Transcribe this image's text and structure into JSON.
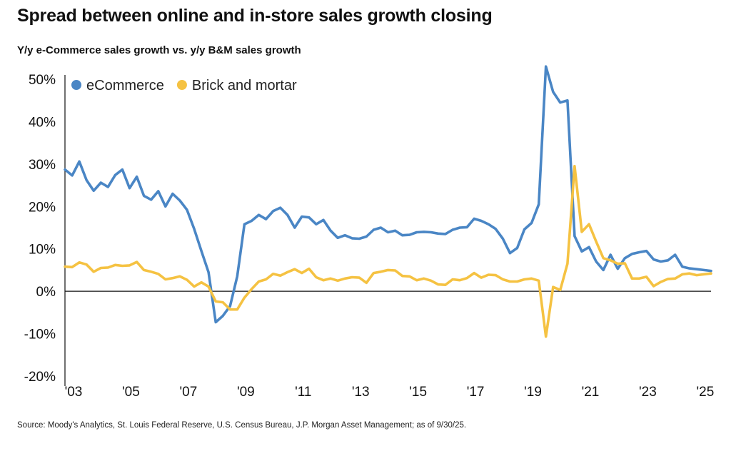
{
  "title": "Spread between online and in-store sales growth closing",
  "subtitle": "Y/y e-Commerce sales growth vs. y/y B&M sales growth",
  "source": "Source: Moody's Analytics, St. Louis Federal Reserve, U.S. Census Bureau, J.P. Morgan Asset Management; as of 9/30/25.",
  "chart_data": {
    "type": "line",
    "title": "Spread between online and in-store sales growth closing",
    "subtitle": "Y/y e-Commerce sales growth vs. y/y B&M sales growth",
    "xlabel": "",
    "ylabel": "",
    "xlim": [
      2003.0,
      2025.5
    ],
    "ylim": [
      -20,
      50
    ],
    "y_ticks": [
      -20,
      -10,
      0,
      10,
      20,
      30,
      40,
      50
    ],
    "y_tick_labels": [
      "-20%",
      "-10%",
      "0%",
      "10%",
      "20%",
      "30%",
      "40%",
      "50%"
    ],
    "x_ticks": [
      2003,
      2005,
      2007,
      2009,
      2011,
      2013,
      2015,
      2017,
      2019,
      2021,
      2023,
      2025
    ],
    "x_tick_labels": [
      "'03",
      "'05",
      "'07",
      "'09",
      "'11",
      "'13",
      "'15",
      "'17",
      "'19",
      "'21",
      "'23",
      "'25"
    ],
    "legend_position": "top-left",
    "grid": false,
    "colors": {
      "ecommerce": "#4a86c5",
      "bm": "#f5c242",
      "axis": "#111111"
    },
    "series": [
      {
        "name": "eCommerce",
        "key": "ecommerce",
        "x": [
          2003.0,
          2003.25,
          2003.5,
          2003.75,
          2004.0,
          2004.25,
          2004.5,
          2004.75,
          2005.0,
          2005.25,
          2005.5,
          2005.75,
          2006.0,
          2006.25,
          2006.5,
          2006.75,
          2007.0,
          2007.25,
          2007.5,
          2007.75,
          2008.0,
          2008.25,
          2008.5,
          2008.75,
          2009.0,
          2009.25,
          2009.5,
          2009.75,
          2010.0,
          2010.25,
          2010.5,
          2010.75,
          2011.0,
          2011.25,
          2011.5,
          2011.75,
          2012.0,
          2012.25,
          2012.5,
          2012.75,
          2013.0,
          2013.25,
          2013.5,
          2013.75,
          2014.0,
          2014.25,
          2014.5,
          2014.75,
          2015.0,
          2015.25,
          2015.5,
          2015.75,
          2016.0,
          2016.25,
          2016.5,
          2016.75,
          2017.0,
          2017.25,
          2017.5,
          2017.75,
          2018.0,
          2018.25,
          2018.5,
          2018.75,
          2019.0,
          2019.25,
          2019.5,
          2019.75,
          2020.0,
          2020.25,
          2020.5,
          2020.75,
          2021.0,
          2021.25,
          2021.5,
          2021.75,
          2022.0,
          2022.25,
          2022.5,
          2022.75,
          2023.0,
          2023.25,
          2023.5,
          2023.75,
          2024.0,
          2024.25,
          2024.5,
          2024.75,
          2025.0,
          2025.25,
          2025.5
        ],
        "values": [
          28.7,
          27.3,
          30.6,
          26.2,
          23.7,
          25.6,
          24.6,
          27.4,
          28.7,
          24.3,
          27.0,
          22.5,
          21.6,
          23.6,
          20.0,
          23.0,
          21.4,
          19.2,
          14.7,
          9.5,
          4.5,
          -7.3,
          -5.8,
          -3.5,
          3.5,
          15.8,
          16.6,
          18.0,
          17.0,
          18.9,
          19.7,
          18.0,
          15.0,
          17.6,
          17.4,
          15.8,
          16.8,
          14.3,
          12.6,
          13.2,
          12.5,
          12.4,
          12.9,
          14.5,
          15.0,
          13.9,
          14.3,
          13.2,
          13.3,
          13.9,
          14.0,
          13.9,
          13.6,
          13.5,
          14.5,
          15.0,
          15.1,
          17.1,
          16.6,
          15.8,
          14.7,
          12.4,
          9.0,
          10.2,
          14.6,
          16.1,
          20.5,
          53.0,
          47.0,
          44.5,
          45.0,
          13.0,
          9.4,
          10.4,
          7.0,
          5.0,
          8.6,
          5.3,
          7.8,
          8.8,
          9.2,
          9.5,
          7.5,
          7.0,
          7.3,
          8.6,
          5.8,
          5.4,
          5.2,
          5.0,
          4.8
        ]
      },
      {
        "name": "Brick and mortar",
        "key": "bm",
        "x": [
          2003.0,
          2003.25,
          2003.5,
          2003.75,
          2004.0,
          2004.25,
          2004.5,
          2004.75,
          2005.0,
          2005.25,
          2005.5,
          2005.75,
          2006.0,
          2006.25,
          2006.5,
          2006.75,
          2007.0,
          2007.25,
          2007.5,
          2007.75,
          2008.0,
          2008.25,
          2008.5,
          2008.75,
          2009.0,
          2009.25,
          2009.5,
          2009.75,
          2010.0,
          2010.25,
          2010.5,
          2010.75,
          2011.0,
          2011.25,
          2011.5,
          2011.75,
          2012.0,
          2012.25,
          2012.5,
          2012.75,
          2013.0,
          2013.25,
          2013.5,
          2013.75,
          2014.0,
          2014.25,
          2014.5,
          2014.75,
          2015.0,
          2015.25,
          2015.5,
          2015.75,
          2016.0,
          2016.25,
          2016.5,
          2016.75,
          2017.0,
          2017.25,
          2017.5,
          2017.75,
          2018.0,
          2018.25,
          2018.5,
          2018.75,
          2019.0,
          2019.25,
          2019.5,
          2019.75,
          2020.0,
          2020.25,
          2020.5,
          2020.75,
          2021.0,
          2021.25,
          2021.5,
          2021.75,
          2022.0,
          2022.25,
          2022.5,
          2022.75,
          2023.0,
          2023.25,
          2023.5,
          2023.75,
          2024.0,
          2024.25,
          2024.5,
          2024.75,
          2025.0,
          2025.25,
          2025.5
        ],
        "values": [
          5.8,
          5.7,
          6.8,
          6.3,
          4.6,
          5.5,
          5.6,
          6.2,
          6.0,
          6.1,
          6.9,
          5.0,
          4.6,
          4.1,
          2.8,
          3.1,
          3.5,
          2.7,
          1.1,
          2.1,
          1.1,
          -2.4,
          -2.6,
          -4.3,
          -4.3,
          -1.5,
          0.5,
          2.3,
          2.8,
          4.1,
          3.7,
          4.5,
          5.2,
          4.3,
          5.3,
          3.3,
          2.6,
          3.0,
          2.5,
          3.0,
          3.3,
          3.2,
          2.0,
          4.3,
          4.6,
          5.0,
          4.9,
          3.6,
          3.5,
          2.6,
          3.0,
          2.5,
          1.6,
          1.5,
          2.8,
          2.6,
          3.1,
          4.3,
          3.2,
          3.9,
          3.8,
          2.8,
          2.3,
          2.3,
          2.8,
          3.0,
          2.5,
          -10.7,
          1.0,
          0.3,
          6.5,
          29.5,
          14.0,
          15.8,
          11.7,
          7.8,
          7.3,
          6.5,
          6.6,
          3.0,
          3.0,
          3.4,
          1.2,
          2.2,
          2.9,
          3.0,
          4.0,
          4.2,
          3.8,
          4.0,
          4.2
        ]
      }
    ]
  }
}
